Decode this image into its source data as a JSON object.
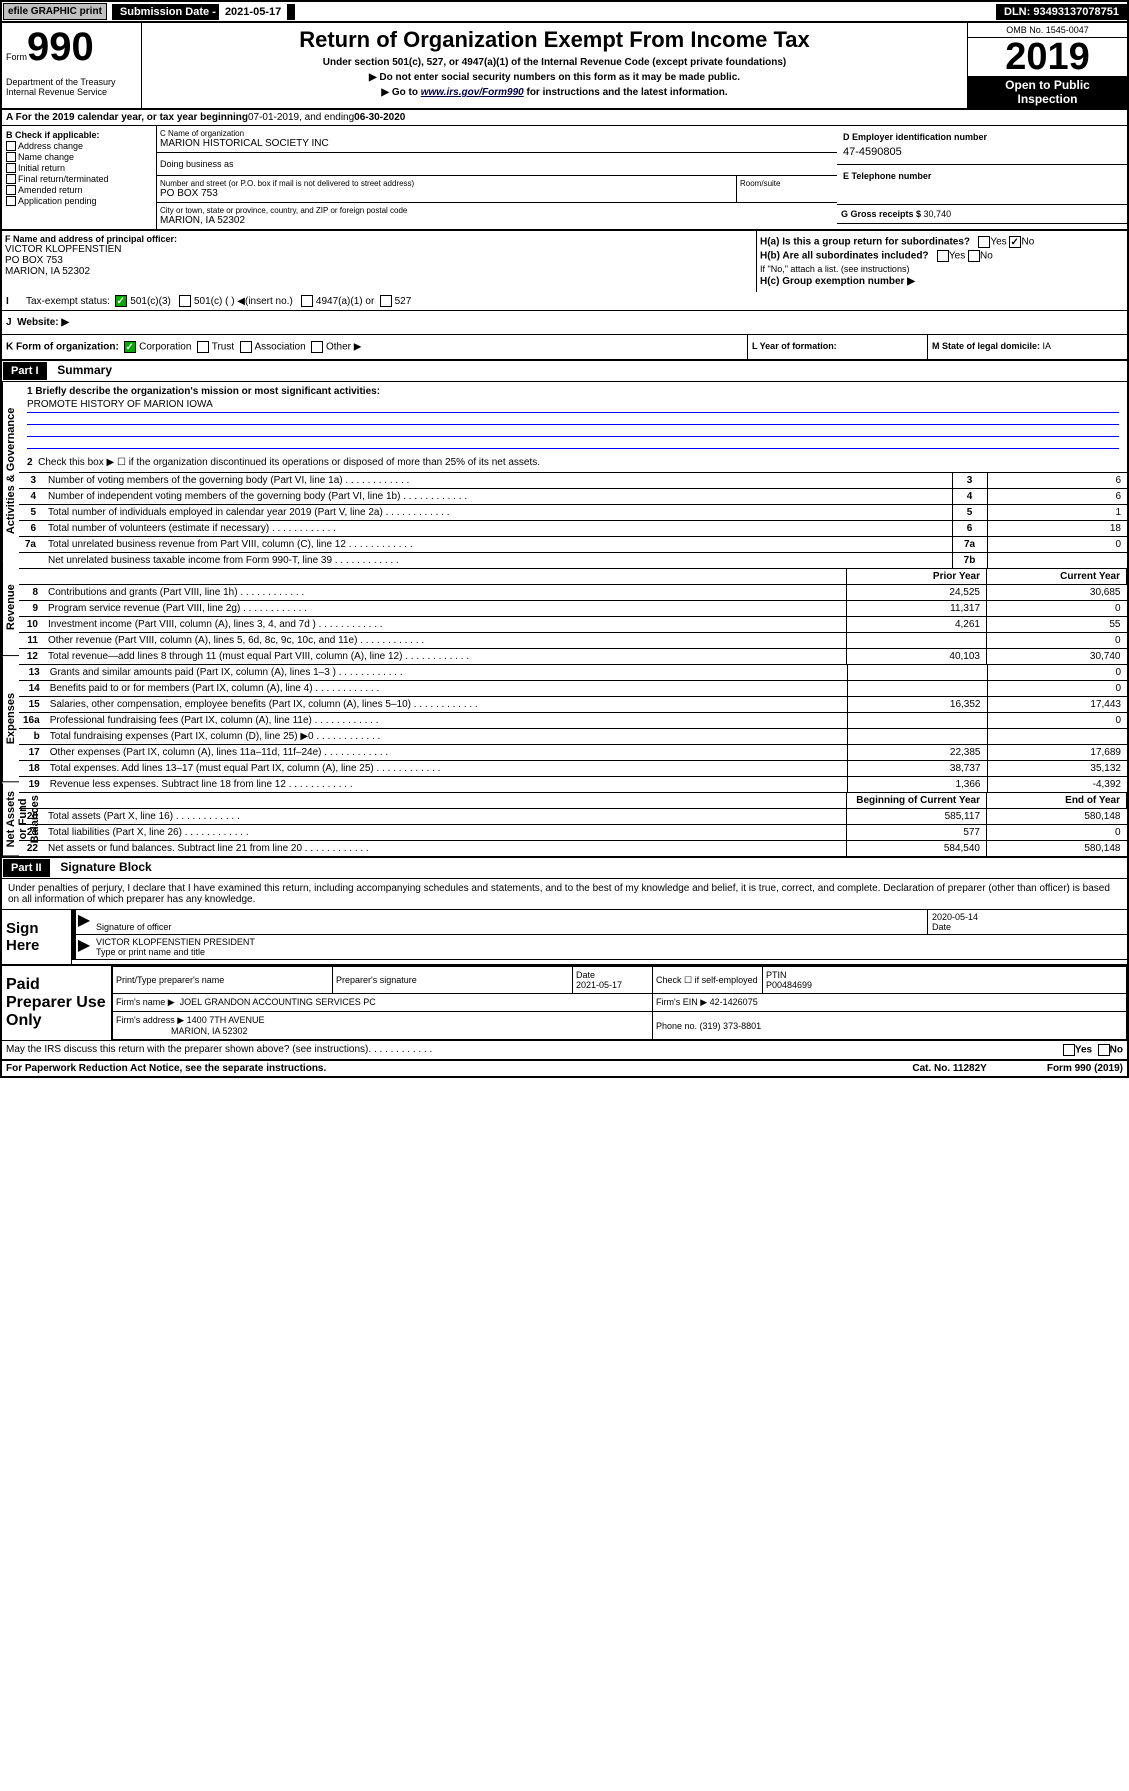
{
  "topbar": {
    "efile": "efile GRAPHIC print",
    "subdate_label": "Submission Date - ",
    "subdate": "2021-05-17",
    "dln_label": "DLN: ",
    "dln": "93493137078751"
  },
  "header": {
    "form_label": "Form",
    "form_num": "990",
    "dept": "Department of the Treasury\nInternal Revenue Service",
    "title": "Return of Organization Exempt From Income Tax",
    "subtitle": "Under section 501(c), 527, or 4947(a)(1) of the Internal Revenue Code (except private foundations)",
    "note1": "▶ Do not enter social security numbers on this form as it may be made public.",
    "note2_pre": "▶ Go to ",
    "note2_link": "www.irs.gov/Form990",
    "note2_post": " for instructions and the latest information.",
    "omb": "OMB No. 1545-0047",
    "year": "2019",
    "inspect": "Open to Public\nInspection"
  },
  "sectionA": {
    "label": "A For the 2019 calendar year, or tax year beginning ",
    "begin": "07-01-2019",
    "mid": " , and ending ",
    "end": "06-30-2020"
  },
  "sectionB": {
    "title": "B Check if applicable:",
    "items": [
      "Address change",
      "Name change",
      "Initial return",
      "Final return/terminated",
      "Amended return",
      "Application pending"
    ]
  },
  "sectionC": {
    "name_label": "C Name of organization",
    "name": "MARION HISTORICAL SOCIETY INC",
    "dba_label": "Doing business as",
    "addr_label": "Number and street (or P.O. box if mail is not delivered to street address)",
    "addr": "PO BOX 753",
    "room_label": "Room/suite",
    "city_label": "City or town, state or province, country, and ZIP or foreign postal code",
    "city": "MARION, IA  52302"
  },
  "sectionD": {
    "label": "D Employer identification number",
    "val": "47-4590805"
  },
  "sectionE": {
    "label": "E Telephone number"
  },
  "sectionG": {
    "label": "G Gross receipts $ ",
    "val": "30,740"
  },
  "sectionF": {
    "label": "F  Name and address of principal officer:",
    "name": "VICTOR KLOPFENSTIEN",
    "addr1": "PO BOX 753",
    "addr2": "MARION, IA  52302"
  },
  "sectionH": {
    "ha": "H(a)  Is this a group return for subordinates?",
    "hb": "H(b)  Are all subordinates included?",
    "hb_note": "If \"No,\" attach a list. (see instructions)",
    "hc": "H(c)  Group exemption number ▶",
    "yes": "Yes",
    "no": "No"
  },
  "taxExempt": {
    "label": "Tax-exempt status:",
    "opt1": "501(c)(3)",
    "opt2": "501(c) (   ) ◀(insert no.)",
    "opt3": "4947(a)(1) or",
    "opt4": "527"
  },
  "sectionI": {
    "label": "I",
    "text": "Tax-exempt status:"
  },
  "sectionJ": {
    "label": "J",
    "text": "Website: ▶"
  },
  "sectionK": {
    "label": "K Form of organization:",
    "opts": [
      "Corporation",
      "Trust",
      "Association",
      "Other ▶"
    ]
  },
  "sectionL": {
    "label": "L Year of formation:"
  },
  "sectionM": {
    "label": "M State of legal domicile: ",
    "val": "IA"
  },
  "part1": {
    "header": "Part I",
    "title": "Summary",
    "side_labels": [
      "Activities & Governance",
      "Revenue",
      "Expenses",
      "Net Assets or Fund Balances"
    ],
    "line1": "1  Briefly describe the organization's mission or most significant activities:",
    "mission": "PROMOTE HISTORY OF MARION IOWA",
    "line2": "Check this box ▶ ☐  if the organization discontinued its operations or disposed of more than 25% of its net assets.",
    "gov_rows": [
      {
        "n": "3",
        "d": "Number of voting members of the governing body (Part VI, line 1a)",
        "nc": "3",
        "v": "6"
      },
      {
        "n": "4",
        "d": "Number of independent voting members of the governing body (Part VI, line 1b)",
        "nc": "4",
        "v": "6"
      },
      {
        "n": "5",
        "d": "Total number of individuals employed in calendar year 2019 (Part V, line 2a)",
        "nc": "5",
        "v": "1"
      },
      {
        "n": "6",
        "d": "Total number of volunteers (estimate if necessary)",
        "nc": "6",
        "v": "18"
      },
      {
        "n": "7a",
        "d": "Total unrelated business revenue from Part VIII, column (C), line 12",
        "nc": "7a",
        "v": "0"
      },
      {
        "n": "",
        "d": "Net unrelated business taxable income from Form 990-T, line 39",
        "nc": "7b",
        "v": ""
      }
    ],
    "col_headers": [
      "Prior Year",
      "Current Year"
    ],
    "rev_rows": [
      {
        "n": "8",
        "d": "Contributions and grants (Part VIII, line 1h)",
        "p": "24,525",
        "c": "30,685"
      },
      {
        "n": "9",
        "d": "Program service revenue (Part VIII, line 2g)",
        "p": "11,317",
        "c": "0"
      },
      {
        "n": "10",
        "d": "Investment income (Part VIII, column (A), lines 3, 4, and 7d )",
        "p": "4,261",
        "c": "55"
      },
      {
        "n": "11",
        "d": "Other revenue (Part VIII, column (A), lines 5, 6d, 8c, 9c, 10c, and 11e)",
        "p": "",
        "c": "0"
      },
      {
        "n": "12",
        "d": "Total revenue—add lines 8 through 11 (must equal Part VIII, column (A), line 12)",
        "p": "40,103",
        "c": "30,740"
      }
    ],
    "exp_rows": [
      {
        "n": "13",
        "d": "Grants and similar amounts paid (Part IX, column (A), lines 1–3 )",
        "p": "",
        "c": "0"
      },
      {
        "n": "14",
        "d": "Benefits paid to or for members (Part IX, column (A), line 4)",
        "p": "",
        "c": "0"
      },
      {
        "n": "15",
        "d": "Salaries, other compensation, employee benefits (Part IX, column (A), lines 5–10)",
        "p": "16,352",
        "c": "17,443"
      },
      {
        "n": "16a",
        "d": "Professional fundraising fees (Part IX, column (A), line 11e)",
        "p": "",
        "c": "0"
      },
      {
        "n": "b",
        "d": "Total fundraising expenses (Part IX, column (D), line 25) ▶0",
        "p": "shade",
        "c": "shade"
      },
      {
        "n": "17",
        "d": "Other expenses (Part IX, column (A), lines 11a–11d, 11f–24e)",
        "p": "22,385",
        "c": "17,689"
      },
      {
        "n": "18",
        "d": "Total expenses. Add lines 13–17 (must equal Part IX, column (A), line 25)",
        "p": "38,737",
        "c": "35,132"
      },
      {
        "n": "19",
        "d": "Revenue less expenses. Subtract line 18 from line 12",
        "p": "1,366",
        "c": "-4,392"
      }
    ],
    "asset_headers": [
      "Beginning of Current Year",
      "End of Year"
    ],
    "asset_rows": [
      {
        "n": "20",
        "d": "Total assets (Part X, line 16)",
        "p": "585,117",
        "c": "580,148"
      },
      {
        "n": "21",
        "d": "Total liabilities (Part X, line 26)",
        "p": "577",
        "c": "0"
      },
      {
        "n": "22",
        "d": "Net assets or fund balances. Subtract line 21 from line 20",
        "p": "584,540",
        "c": "580,148"
      }
    ]
  },
  "part2": {
    "header": "Part II",
    "title": "Signature Block",
    "perjury": "Under penalties of perjury, I declare that I have examined this return, including accompanying schedules and statements, and to the best of my knowledge and belief, it is true, correct, and complete. Declaration of preparer (other than officer) is based on all information of which preparer has any knowledge.",
    "sign_here": "Sign Here",
    "sig_officer": "Signature of officer",
    "date_label": "Date",
    "sig_date": "2020-05-14",
    "type_name": "VICTOR KLOPFENSTIEN  PRESIDENT",
    "type_label": "Type or print name and title",
    "paid_label": "Paid Preparer Use Only",
    "prep_name_label": "Print/Type preparer's name",
    "prep_sig_label": "Preparer's signature",
    "prep_date_label": "Date",
    "prep_date": "2021-05-17",
    "check_self": "Check ☐ if self-employed",
    "ptin_label": "PTIN",
    "ptin": "P00484699",
    "firm_name_label": "Firm's name    ▶",
    "firm_name": "JOEL GRANDON ACCOUNTING SERVICES PC",
    "firm_ein_label": "Firm's EIN ▶",
    "firm_ein": "42-1426075",
    "firm_addr_label": "Firm's address ▶",
    "firm_addr": "1400 7TH AVENUE",
    "firm_city": "MARION, IA  52302",
    "phone_label": "Phone no. ",
    "phone": "(319) 373-8801",
    "discuss": "May the IRS discuss this return with the preparer shown above? (see instructions)",
    "notice": "For Paperwork Reduction Act Notice, see the separate instructions.",
    "cat": "Cat. No. 11282Y",
    "form_ref": "Form 990 (2019)"
  }
}
